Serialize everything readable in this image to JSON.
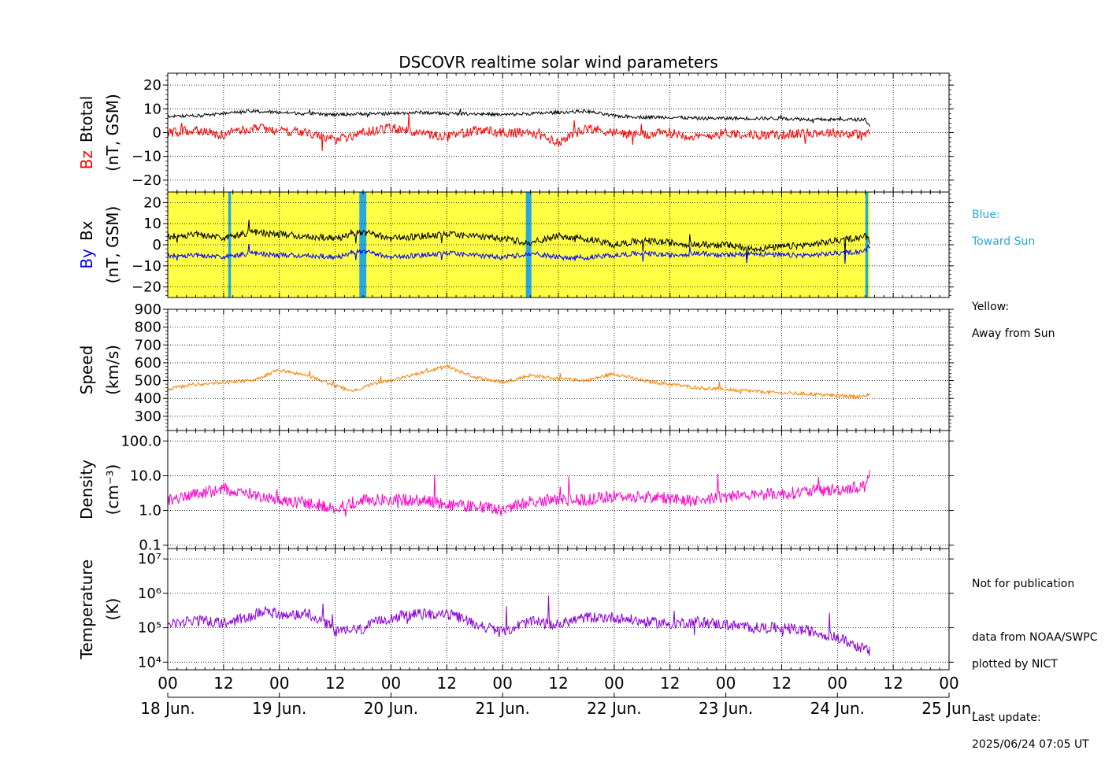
{
  "title": "DSCOVR realtime solar wind parameters",
  "legend": {
    "blue_label": "Blue:",
    "blue_text": "Toward Sun",
    "yellow_label": "Yellow:",
    "yellow_text": "Away from Sun"
  },
  "notes": {
    "not_for_publication": "Not for publication",
    "data_from": "data from NOAA/SWPC",
    "plotted_by": "plotted by NICT",
    "last_update_label": "Last update:",
    "last_update": "2025/06/24 07:05 UT"
  },
  "colors": {
    "btotal": "#000000",
    "bz": "#ff0000",
    "by": "#000000",
    "bx": "#0000ff",
    "away": "#ffff44",
    "toward": "#29a8dc",
    "speed": "#ff8000",
    "density": "#ff00cc",
    "temperature": "#8b00d9"
  },
  "chart_data": [
    {
      "type": "line",
      "panel": "magnetic field Bt/Bz",
      "ylabel_parts": [
        "Bz",
        "Btotal"
      ],
      "ylabel_unit": "(nT, GSM)",
      "ylim": [
        -25,
        25
      ],
      "yticks": [
        20,
        10,
        0,
        -10,
        -20
      ],
      "ytick_labels": [
        "20",
        "10",
        "0",
        "−10",
        "−20"
      ],
      "x_unit": "hours since 18 Jun. 00 UT",
      "series": [
        {
          "name": "Btotal",
          "color": "#000000",
          "noise": 0.7,
          "x": [
            0,
            6,
            12,
            18,
            24,
            30,
            36,
            42,
            48,
            54,
            60,
            66,
            72,
            78,
            84,
            90,
            96,
            102,
            108,
            114,
            120,
            126,
            132,
            138,
            144,
            150,
            151
          ],
          "y": [
            7,
            7,
            8,
            9,
            8.5,
            8,
            7.5,
            8,
            8,
            8.5,
            8,
            8,
            7.5,
            8,
            8.5,
            9,
            7,
            6.5,
            6.5,
            6,
            6,
            6,
            6,
            5.5,
            5.5,
            5.5,
            3
          ]
        },
        {
          "name": "Bz",
          "color": "#ff0000",
          "noise": 2.0,
          "x": [
            0,
            6,
            12,
            18,
            24,
            30,
            36,
            42,
            48,
            54,
            60,
            66,
            72,
            78,
            84,
            90,
            96,
            102,
            108,
            114,
            120,
            126,
            132,
            138,
            144,
            150,
            151
          ],
          "y": [
            0,
            1,
            -1,
            2,
            1,
            0,
            -3,
            0,
            2,
            0,
            -2,
            1,
            0,
            0,
            -4,
            2,
            0,
            -1,
            0,
            -2,
            0,
            -1,
            -1,
            0,
            0,
            -1,
            0
          ]
        }
      ]
    },
    {
      "type": "line",
      "panel": "magnetic field By/Bx with sector polarity",
      "ylabel_parts": [
        "By",
        "Bx"
      ],
      "ylabel_unit": "(nT, GSM)",
      "ylim": [
        -25,
        25
      ],
      "yticks": [
        20,
        10,
        0,
        -10,
        -20
      ],
      "ytick_labels": [
        "20",
        "10",
        "0",
        "−10",
        "−20"
      ],
      "polarity_background": {
        "away": [
          [
            0,
            151
          ]
        ],
        "toward": [
          [
            13,
            13.6
          ],
          [
            41.2,
            42.7
          ],
          [
            77,
            78.2
          ],
          [
            150,
            150.6
          ]
        ]
      },
      "series": [
        {
          "name": "By",
          "color": "#000000",
          "noise": 1.6,
          "x": [
            0,
            6,
            12,
            18,
            24,
            30,
            36,
            42,
            48,
            54,
            60,
            66,
            72,
            78,
            84,
            90,
            96,
            102,
            108,
            114,
            120,
            126,
            132,
            138,
            144,
            150,
            151
          ],
          "y": [
            4,
            5,
            3,
            6,
            5,
            4,
            3,
            6,
            3,
            4,
            5,
            4,
            3,
            1,
            4,
            3,
            0,
            2,
            1,
            0,
            0,
            -2,
            -1,
            0,
            2,
            4,
            2
          ]
        },
        {
          "name": "Bx",
          "color": "#0000ff",
          "noise": 1.2,
          "x": [
            0,
            6,
            12,
            18,
            24,
            30,
            36,
            42,
            48,
            54,
            60,
            66,
            72,
            78,
            84,
            90,
            96,
            102,
            108,
            114,
            120,
            126,
            132,
            138,
            144,
            150,
            151
          ],
          "y": [
            -5,
            -5,
            -6,
            -4,
            -5,
            -5,
            -6,
            -3,
            -6,
            -5,
            -4,
            -5,
            -6,
            -4,
            -6,
            -6,
            -5,
            -4,
            -5,
            -4,
            -5,
            -4,
            -5,
            -5,
            -4,
            -3,
            0
          ]
        }
      ]
    },
    {
      "type": "line",
      "panel": "speed",
      "ylabel": "Speed",
      "ylabel_unit": "(km/s)",
      "ylim": [
        220,
        900
      ],
      "yticks": [
        900,
        800,
        700,
        600,
        500,
        400,
        300
      ],
      "ytick_labels": [
        "900",
        "800",
        "700",
        "600",
        "500",
        "400",
        "300"
      ],
      "series": [
        {
          "name": "Speed",
          "color": "#ff8000",
          "noise": 10,
          "x": [
            0,
            6,
            12,
            18,
            24,
            30,
            36,
            40,
            44,
            48,
            54,
            60,
            66,
            72,
            78,
            84,
            90,
            96,
            102,
            108,
            114,
            120,
            126,
            132,
            138,
            144,
            150,
            151
          ],
          "y": [
            450,
            480,
            490,
            500,
            560,
            530,
            470,
            440,
            480,
            500,
            540,
            580,
            520,
            490,
            530,
            510,
            500,
            540,
            500,
            480,
            460,
            450,
            440,
            430,
            425,
            415,
            410,
            430
          ]
        }
      ]
    },
    {
      "type": "line",
      "panel": "density",
      "ylabel": "Density",
      "ylabel_unit": "(cm⁻³)",
      "yscale": "log",
      "ylim": [
        0.08,
        200
      ],
      "yticks": [
        100,
        10,
        1,
        0.1
      ],
      "ytick_labels": [
        "100.0",
        "10.0",
        "1.0",
        "0.1"
      ],
      "series": [
        {
          "name": "Density",
          "color": "#ff00cc",
          "noise_log": 0.18,
          "x": [
            0,
            6,
            12,
            18,
            24,
            30,
            36,
            42,
            48,
            54,
            60,
            66,
            72,
            78,
            84,
            90,
            96,
            102,
            108,
            114,
            120,
            126,
            132,
            138,
            144,
            150,
            151
          ],
          "y": [
            2,
            3,
            4,
            3,
            2,
            1.6,
            1.2,
            2,
            2,
            2,
            1.5,
            1.3,
            1,
            1.8,
            2,
            2,
            2.5,
            2.5,
            2.2,
            2,
            2.5,
            3,
            3,
            3.5,
            4,
            5,
            15
          ]
        }
      ]
    },
    {
      "type": "line",
      "panel": "temperature",
      "ylabel": "Temperature",
      "ylabel_unit": "(K)",
      "yscale": "log",
      "ylim": [
        6000,
        20000000
      ],
      "yticks": [
        10000000,
        1000000,
        100000,
        10000
      ],
      "ytick_labels": [
        "10⁷",
        "10⁶",
        "10⁵",
        "10⁴"
      ],
      "series": [
        {
          "name": "Temperature",
          "color": "#8b00d9",
          "noise_log": 0.16,
          "x": [
            0,
            6,
            12,
            18,
            20,
            24,
            30,
            36,
            42,
            48,
            54,
            60,
            66,
            72,
            78,
            84,
            90,
            96,
            102,
            108,
            114,
            120,
            126,
            132,
            138,
            144,
            148,
            151
          ],
          "y": [
            120000,
            160000,
            140000,
            200000,
            300000,
            250000,
            250000,
            80000,
            90000,
            200000,
            250000,
            250000,
            130000,
            70000,
            150000,
            120000,
            200000,
            200000,
            150000,
            130000,
            150000,
            120000,
            100000,
            100000,
            80000,
            50000,
            30000,
            20000
          ]
        }
      ]
    }
  ],
  "x_axis": {
    "range_hours": [
      0,
      168
    ],
    "major_tick_labels": [
      "00",
      "12",
      "00",
      "12",
      "00",
      "12",
      "00",
      "12",
      "00",
      "12",
      "00",
      "12",
      "00",
      "12",
      "00"
    ],
    "day_labels": [
      "18 Jun.",
      "19 Jun.",
      "20 Jun.",
      "21 Jun.",
      "22 Jun.",
      "23 Jun.",
      "24 Jun.",
      "25 Jun."
    ]
  }
}
